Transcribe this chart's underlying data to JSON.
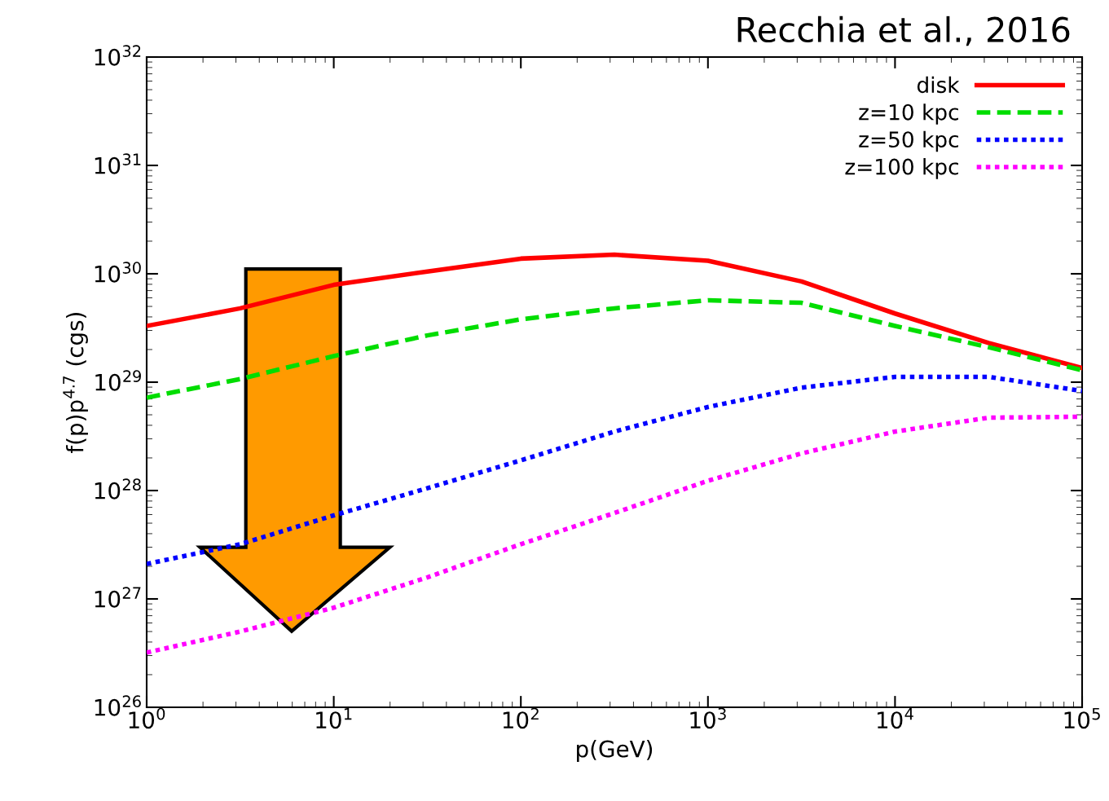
{
  "chart_data": {
    "type": "line",
    "xlabel": "p(GeV)",
    "ylabel": "f(p)p$^{4.7}$ (cgs)",
    "annotations": [
      "Recchia et al., 2016"
    ],
    "log": "xy",
    "grid": false,
    "legend": "top right",
    "x": [
      1,
      3.162,
      10,
      31.62,
      100,
      316.2,
      1000,
      3162,
      10000,
      31620,
      100000
    ],
    "series": [
      {
        "name": "disk",
        "color": "#ff0000",
        "line_style": "solid",
        "values": [
          3.3e+29,
          4.8e+29,
          7.9e+29,
          1.05e+30,
          1.38e+30,
          1.5e+30,
          1.32e+30,
          8.5e+29,
          4.3e+29,
          2.3e+29,
          1.35e+29
        ]
      },
      {
        "name": "z=10 kpc",
        "color": "#00dd00",
        "line_style": "dashed",
        "values": [
          7.2e+28,
          1.07e+29,
          1.74e+29,
          2.7e+29,
          3.8e+29,
          4.8e+29,
          5.7e+29,
          5.4e+29,
          3.3e+29,
          2.1e+29,
          1.29e+29
        ]
      },
      {
        "name": "z=50 kpc",
        "color": "#0000ff",
        "line_style": "dotted",
        "values": [
          2.1e+27,
          3.2e+27,
          5.9e+27,
          1.05e+28,
          1.9e+28,
          3.5e+28,
          5.9e+28,
          8.9e+28,
          1.12e+29,
          1.12e+29,
          8.3e+28
        ]
      },
      {
        "name": "z=100 kpc",
        "color": "#ff00ff",
        "line_style": "dotted",
        "values": [
          3.2e+26,
          5e+26,
          8.3e+26,
          1.58e+27,
          3.2e+27,
          6.2e+27,
          1.23e+28,
          2.2e+28,
          3.5e+28,
          4.7e+28,
          4.8e+28
        ]
      }
    ],
    "xlim": [
      1,
      100000
    ],
    "ylim": [
      1e+26,
      1e+32
    ],
    "xticks": [
      {
        "value": 1,
        "label": "10$^{0}$"
      },
      {
        "value": 10,
        "label": "10$^{1}$"
      },
      {
        "value": 100,
        "label": "10$^{2}$"
      },
      {
        "value": 1000,
        "label": "10$^{3}$"
      },
      {
        "value": 10000,
        "label": "10$^{4}$"
      },
      {
        "value": 100000,
        "label": "10$^{5}$"
      }
    ],
    "yticks": [
      {
        "value": 1e+26,
        "label": "10$^{26}$"
      },
      {
        "value": 1e+27,
        "label": "10$^{27}$"
      },
      {
        "value": 1e+28,
        "label": "10$^{28}$"
      },
      {
        "value": 1e+29,
        "label": "10$^{29}$"
      },
      {
        "value": 1e+30,
        "label": "10$^{30}$"
      },
      {
        "value": 1e+31,
        "label": "10$^{31}$"
      },
      {
        "value": 1e+32,
        "label": "10$^{32}$"
      }
    ]
  }
}
